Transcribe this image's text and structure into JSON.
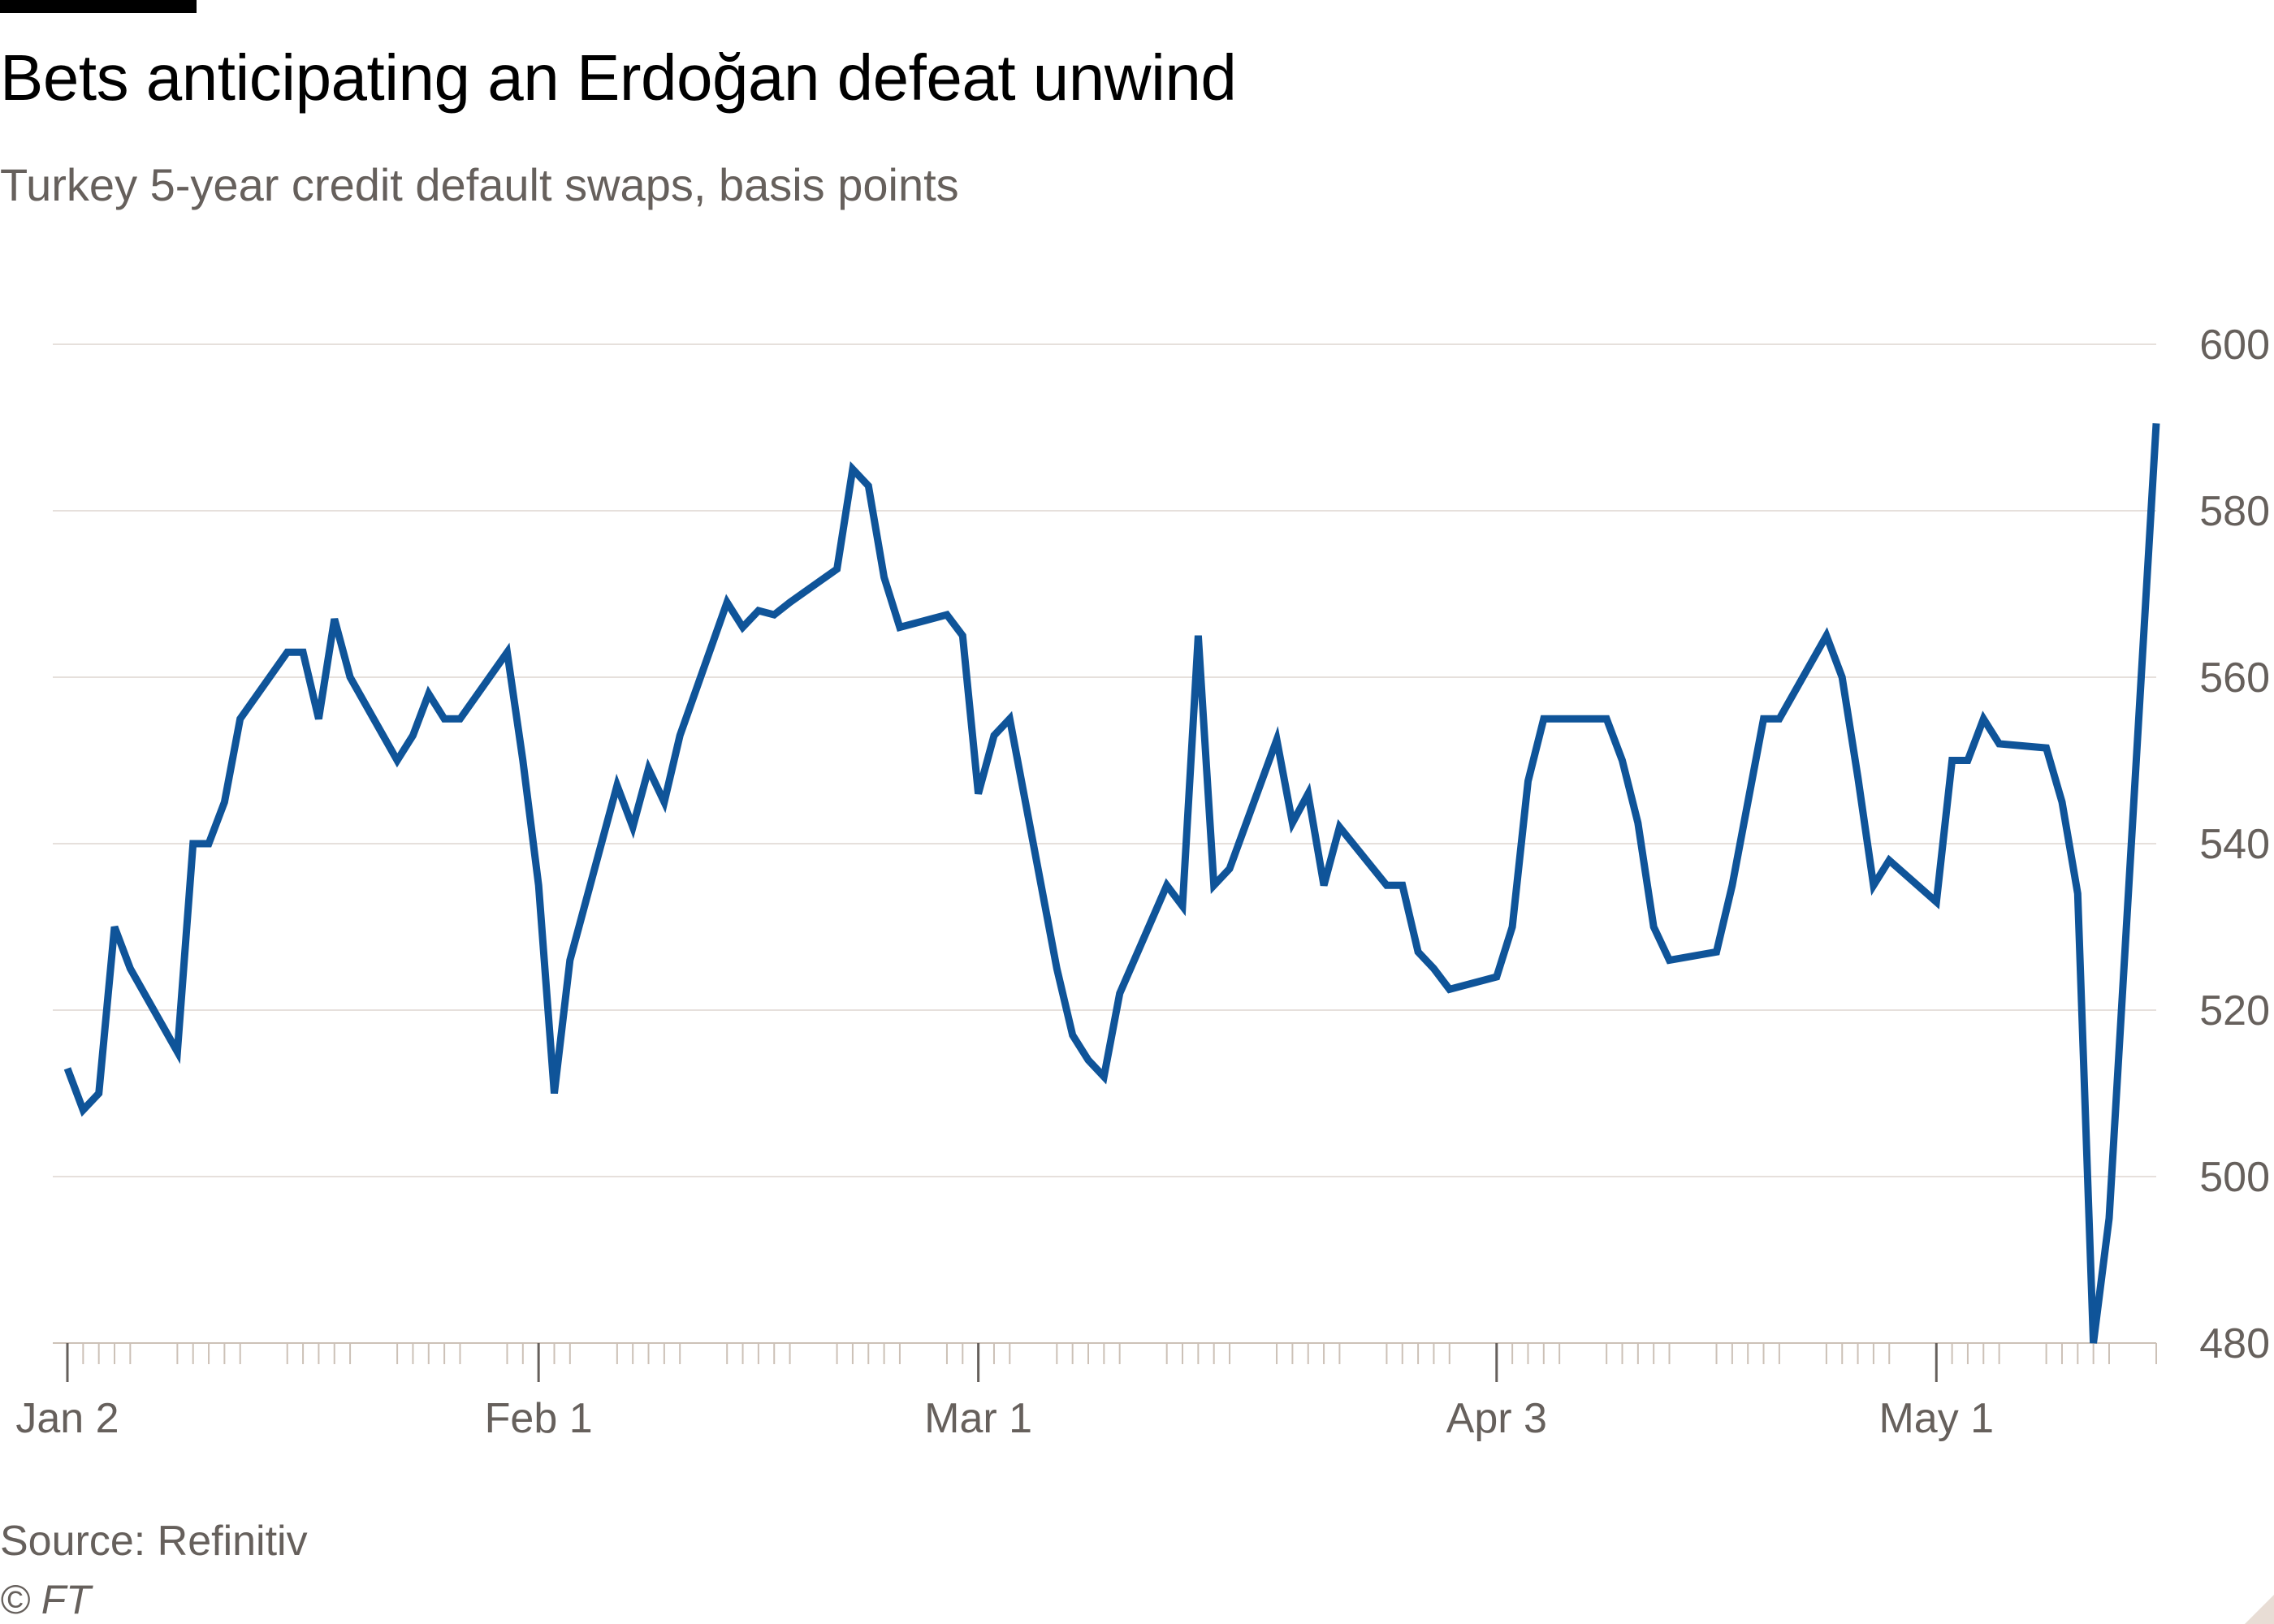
{
  "header": {
    "title": "Bets anticipating an Erdoğan defeat unwind",
    "subtitle": "Turkey 5-year credit default swaps, basis points"
  },
  "footer": {
    "source": "Source: Refinitiv",
    "copyright": "© FT"
  },
  "colors": {
    "line": "#0f5499",
    "grid": "#e6e0dc",
    "axis": "#ccc1b7",
    "text_muted": "#66605c"
  },
  "chart_data": {
    "type": "line",
    "title": "Bets anticipating an Erdoğan defeat unwind",
    "subtitle": "Turkey 5-year credit default swaps, basis points",
    "xlabel": "",
    "ylabel": "",
    "ylim": [
      480,
      600
    ],
    "y_ticks": [
      480,
      500,
      520,
      540,
      560,
      580,
      600
    ],
    "y_axis_side": "right",
    "grid": true,
    "x_tick_labels": [
      {
        "label": "Jan 2",
        "date": "2023-01-02"
      },
      {
        "label": "Feb 1",
        "date": "2023-02-01"
      },
      {
        "label": "Mar 1",
        "date": "2023-03-01"
      },
      {
        "label": "Apr 3",
        "date": "2023-04-03"
      },
      {
        "label": "May 1",
        "date": "2023-05-01"
      }
    ],
    "series": [
      {
        "x": [
          "2023-01-02",
          "2023-01-03",
          "2023-01-04",
          "2023-01-05",
          "2023-01-06",
          "2023-01-09",
          "2023-01-10",
          "2023-01-11",
          "2023-01-12",
          "2023-01-13",
          "2023-01-16",
          "2023-01-17",
          "2023-01-18",
          "2023-01-19",
          "2023-01-20",
          "2023-01-23",
          "2023-01-24",
          "2023-01-25",
          "2023-01-26",
          "2023-01-27",
          "2023-01-30",
          "2023-01-31",
          "2023-02-01",
          "2023-02-02",
          "2023-02-03",
          "2023-02-06",
          "2023-02-07",
          "2023-02-08",
          "2023-02-09",
          "2023-02-10",
          "2023-02-13",
          "2023-02-14",
          "2023-02-15",
          "2023-02-16",
          "2023-02-17",
          "2023-02-20",
          "2023-02-21",
          "2023-02-22",
          "2023-02-23",
          "2023-02-24",
          "2023-02-27",
          "2023-02-28",
          "2023-03-01",
          "2023-03-02",
          "2023-03-03",
          "2023-03-06",
          "2023-03-07",
          "2023-03-08",
          "2023-03-09",
          "2023-03-10",
          "2023-03-13",
          "2023-03-14",
          "2023-03-15",
          "2023-03-16",
          "2023-03-17",
          "2023-03-20",
          "2023-03-21",
          "2023-03-22",
          "2023-03-23",
          "2023-03-24",
          "2023-03-27",
          "2023-03-28",
          "2023-03-29",
          "2023-03-30",
          "2023-03-31",
          "2023-04-03",
          "2023-04-04",
          "2023-04-05",
          "2023-04-06",
          "2023-04-07",
          "2023-04-10",
          "2023-04-11",
          "2023-04-12",
          "2023-04-13",
          "2023-04-14",
          "2023-04-17",
          "2023-04-18",
          "2023-04-19",
          "2023-04-20",
          "2023-04-21",
          "2023-04-24",
          "2023-04-25",
          "2023-04-26",
          "2023-04-27",
          "2023-04-28",
          "2023-05-01",
          "2023-05-02",
          "2023-05-03",
          "2023-05-04",
          "2023-05-05",
          "2023-05-08",
          "2023-05-09",
          "2023-05-10",
          "2023-05-11",
          "2023-05-12",
          "2023-05-15"
        ],
        "values": [
          513,
          508,
          510,
          530,
          525,
          515,
          540,
          540,
          545,
          555,
          563,
          563,
          555,
          567,
          560,
          550,
          553,
          558,
          555,
          555,
          563,
          550,
          535,
          510,
          526,
          547,
          542,
          549,
          545,
          553,
          569,
          566,
          568,
          567.5,
          569,
          573,
          585,
          583,
          572,
          566,
          567.5,
          565,
          546,
          553,
          555,
          525,
          517,
          514,
          512,
          522,
          535,
          532.5,
          565,
          535,
          537,
          552.5,
          542.5,
          546,
          535,
          542,
          535,
          535,
          527,
          525,
          522.5,
          524,
          530,
          547.5,
          555,
          555,
          555,
          550,
          542.5,
          530,
          526,
          527,
          535,
          545,
          555,
          555,
          565,
          560,
          548,
          535,
          538,
          533,
          550,
          550,
          555,
          552,
          551.5,
          545,
          534,
          480,
          495,
          590.5
        ]
      }
    ]
  }
}
